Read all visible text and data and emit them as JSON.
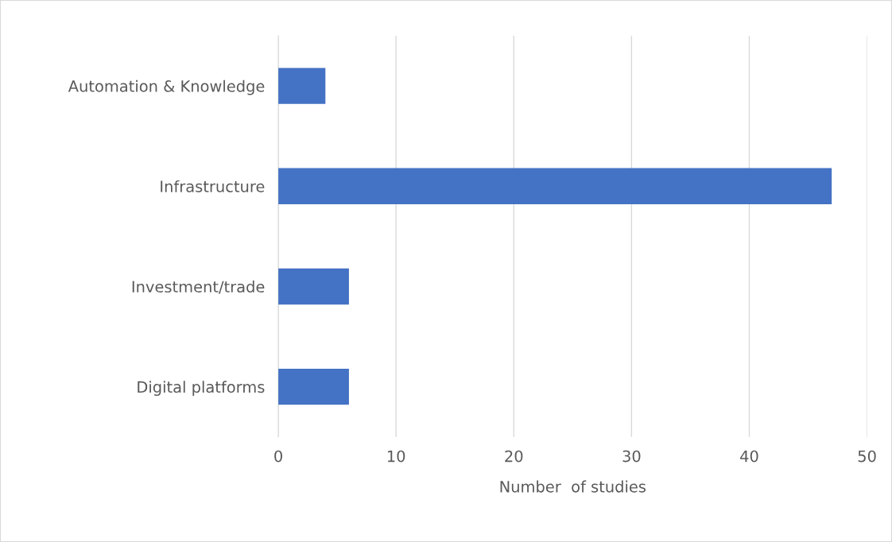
{
  "chart_data": {
    "type": "bar",
    "orientation": "horizontal",
    "categories": [
      "Automation & Knowledge",
      "Infrastructure",
      "Investment/trade",
      "Digital platforms"
    ],
    "values": [
      4,
      47,
      6,
      6
    ],
    "color": "#4472c4",
    "xlim": [
      0,
      50
    ],
    "xticks": [
      0,
      10,
      20,
      30,
      40,
      50
    ],
    "xlabel": "Number  of studies",
    "grid": "x",
    "legend": false
  }
}
